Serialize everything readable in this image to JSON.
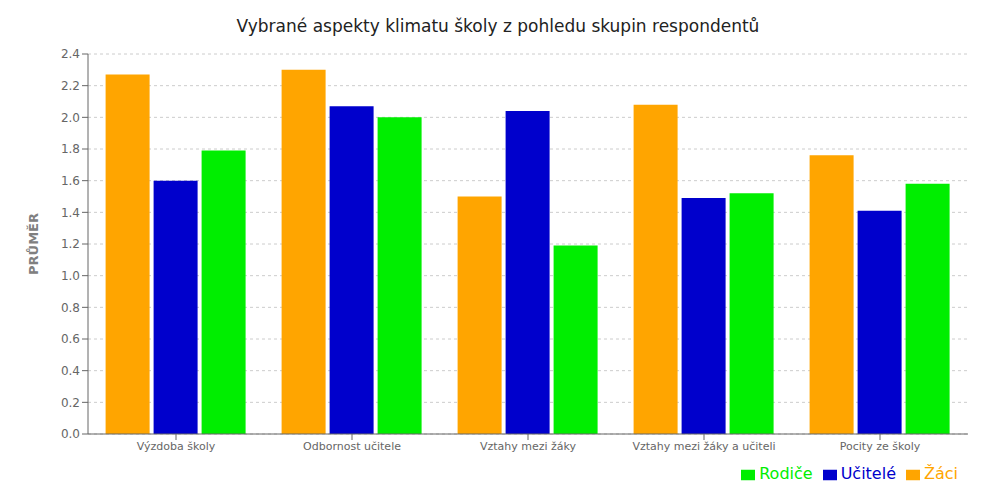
{
  "chart_data": {
    "type": "bar",
    "title": "Vybrané aspekty klimatu školy z pohledu skupin respondentů",
    "categories": [
      "Výzdoba školy",
      "Odbornost učitele",
      "Vztahy mezi žáky",
      "Vztahy mezi žáky a učiteli",
      "Pocity ze školy"
    ],
    "series": [
      {
        "name": "Žáci",
        "color": "#FFA500",
        "values": [
          2.27,
          2.3,
          1.5,
          2.08,
          1.76
        ]
      },
      {
        "name": "Učitelé",
        "color": "#0000CC",
        "values": [
          1.6,
          2.07,
          2.04,
          1.49,
          1.41
        ]
      },
      {
        "name": "Rodiče",
        "color": "#00EE00",
        "values": [
          1.79,
          2.0,
          1.19,
          1.52,
          1.58
        ]
      }
    ],
    "ylabel": "PRŮMĚR",
    "ylim": [
      0.0,
      2.4
    ],
    "yticks": [
      {
        "value": 0,
        "label": "0.0"
      },
      0.2,
      0.4,
      0.6,
      0.8,
      {
        "value": 1,
        "label": "1.0"
      },
      1.2,
      1.4,
      1.6,
      1.8,
      {
        "value": 2,
        "label": "2.0"
      },
      2.2,
      2.4
    ],
    "grid": true,
    "legend": "lower right"
  }
}
